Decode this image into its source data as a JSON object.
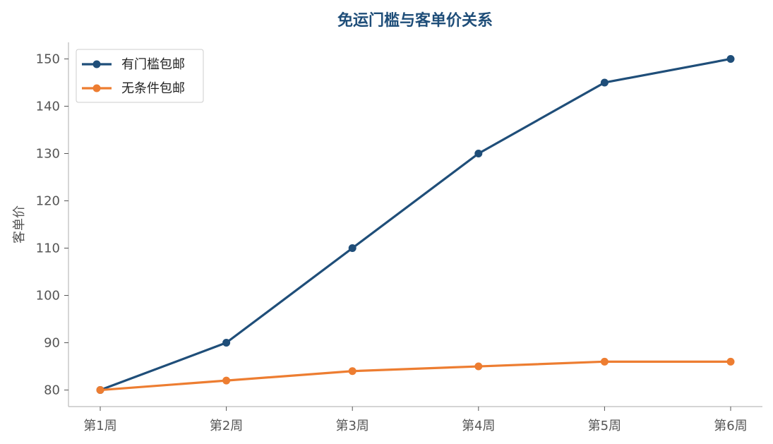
{
  "chart_data": {
    "type": "line",
    "title": "免运门槛与客单价关系",
    "xlabel": "",
    "ylabel": "客单价",
    "categories": [
      "第1周",
      "第2周",
      "第3周",
      "第4周",
      "第5周",
      "第6周"
    ],
    "series": [
      {
        "name": "有门槛包邮",
        "values": [
          80,
          90,
          110,
          130,
          145,
          150
        ],
        "color": "#1f4e79"
      },
      {
        "name": "无条件包邮",
        "values": [
          80,
          82,
          84,
          85,
          86,
          86
        ],
        "color": "#ed7d31"
      }
    ],
    "ylim": [
      76.5,
      153.5
    ],
    "yticks": [
      80,
      90,
      100,
      110,
      120,
      130,
      140,
      150
    ],
    "grid": false,
    "legend": "top-left",
    "title_color": "#1f4e79",
    "axis_color": "#bbbbbb",
    "tick_color": "#555555"
  }
}
